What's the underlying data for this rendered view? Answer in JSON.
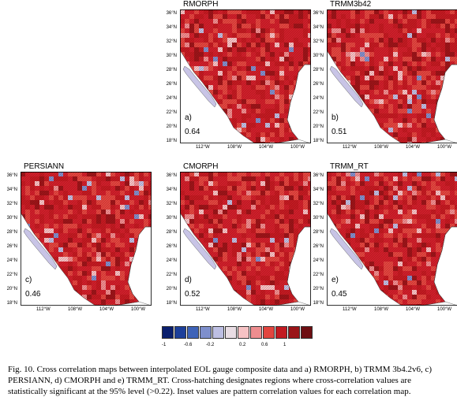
{
  "panels": [
    {
      "title": "RMORPH",
      "letter": "a)",
      "corr": "0.64"
    },
    {
      "title": "TRMM3b42",
      "letter": "b)",
      "corr": "0.51"
    },
    {
      "title": "PERSIANN",
      "letter": "c)",
      "corr": "0.46"
    },
    {
      "title": "CMORPH",
      "letter": "d)",
      "corr": "0.52"
    },
    {
      "title": "TRMM_RT",
      "letter": "e)",
      "corr": "0.45"
    }
  ],
  "lat_labels": [
    "36°N",
    "34°N",
    "32°N",
    "30°N",
    "28°N",
    "26°N",
    "24°N",
    "22°N",
    "20°N",
    "18°N"
  ],
  "lon_labels": [
    "112°W",
    "108°W",
    "104°W",
    "100°W"
  ],
  "colorbar": {
    "colors": [
      "#0a1f6e",
      "#1c3f9a",
      "#3e63b8",
      "#7e8fcc",
      "#bdbfe3",
      "#e9dde4",
      "#f6c2c4",
      "#ee8d8f",
      "#e2453f",
      "#c21a21",
      "#9a1418",
      "#6e0e12"
    ],
    "ticks": [
      "-1",
      "-0.6",
      "-0.2",
      "0.2",
      "0.6",
      "1"
    ]
  },
  "caption": "Fig. 10. Cross correlation maps between interpolated EOL gauge composite data and a) RMORPH, b) TRMM 3b4.2v6, c) PERSIANN, d) CMORPH and e) TRMM_RT. Cross-hatching designates regions where cross-correlation values are statistically significant at the 95% level (>0.22). Inset values are pattern correlation values for each correlation map."
}
